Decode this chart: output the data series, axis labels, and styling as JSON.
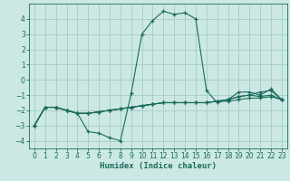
{
  "title": "",
  "xlabel": "Humidex (Indice chaleur)",
  "ylabel": "",
  "bg_color": "#cce8e4",
  "line_color": "#1a6b5a",
  "grid_color": "#aacfca",
  "xlim": [
    -0.5,
    23.5
  ],
  "ylim": [
    -4.5,
    5.0
  ],
  "xticks": [
    0,
    1,
    2,
    3,
    4,
    5,
    6,
    7,
    8,
    9,
    10,
    11,
    12,
    13,
    14,
    15,
    16,
    17,
    18,
    19,
    20,
    21,
    22,
    23
  ],
  "yticks": [
    -4,
    -3,
    -2,
    -1,
    0,
    1,
    2,
    3,
    4
  ],
  "series": [
    {
      "x": [
        0,
        1,
        2,
        3,
        4,
        5,
        6,
        7,
        8,
        9,
        10,
        11,
        12,
        13,
        14,
        15,
        16,
        17,
        18,
        19,
        20,
        21,
        22,
        23
      ],
      "y": [
        -3.0,
        -1.8,
        -1.8,
        -2.0,
        -2.2,
        -3.4,
        -3.5,
        -3.8,
        -4.0,
        -0.9,
        3.0,
        3.9,
        4.5,
        4.3,
        4.4,
        4.0,
        -0.7,
        -1.5,
        -1.3,
        -0.8,
        -0.8,
        -1.0,
        -0.6,
        -1.3
      ]
    },
    {
      "x": [
        0,
        1,
        2,
        3,
        4,
        5,
        6,
        7,
        8,
        9,
        10,
        11,
        12,
        13,
        14,
        15,
        16,
        17,
        18,
        19,
        20,
        21,
        22,
        23
      ],
      "y": [
        -3.0,
        -1.8,
        -1.8,
        -2.0,
        -2.2,
        -2.2,
        -2.1,
        -2.0,
        -1.9,
        -1.8,
        -1.7,
        -1.6,
        -1.5,
        -1.5,
        -1.5,
        -1.5,
        -1.5,
        -1.4,
        -1.4,
        -1.3,
        -1.2,
        -1.2,
        -1.1,
        -1.3
      ]
    },
    {
      "x": [
        0,
        1,
        2,
        3,
        4,
        5,
        6,
        7,
        8,
        9,
        10,
        11,
        12,
        13,
        14,
        15,
        16,
        17,
        18,
        19,
        20,
        21,
        22,
        23
      ],
      "y": [
        -3.0,
        -1.8,
        -1.8,
        -2.0,
        -2.2,
        -2.2,
        -2.1,
        -2.0,
        -1.9,
        -1.8,
        -1.7,
        -1.6,
        -1.5,
        -1.5,
        -1.5,
        -1.5,
        -1.5,
        -1.4,
        -1.3,
        -1.1,
        -1.0,
        -1.1,
        -1.0,
        -1.3
      ]
    },
    {
      "x": [
        0,
        1,
        2,
        3,
        4,
        5,
        6,
        7,
        8,
        9,
        10,
        11,
        12,
        13,
        14,
        15,
        16,
        17,
        18,
        19,
        20,
        21,
        22,
        23
      ],
      "y": [
        -3.0,
        -1.8,
        -1.8,
        -2.0,
        -2.2,
        -2.2,
        -2.1,
        -2.0,
        -1.9,
        -1.8,
        -1.7,
        -1.6,
        -1.5,
        -1.5,
        -1.5,
        -1.5,
        -1.5,
        -1.4,
        -1.3,
        -1.1,
        -1.0,
        -0.8,
        -0.7,
        -1.3
      ]
    }
  ]
}
